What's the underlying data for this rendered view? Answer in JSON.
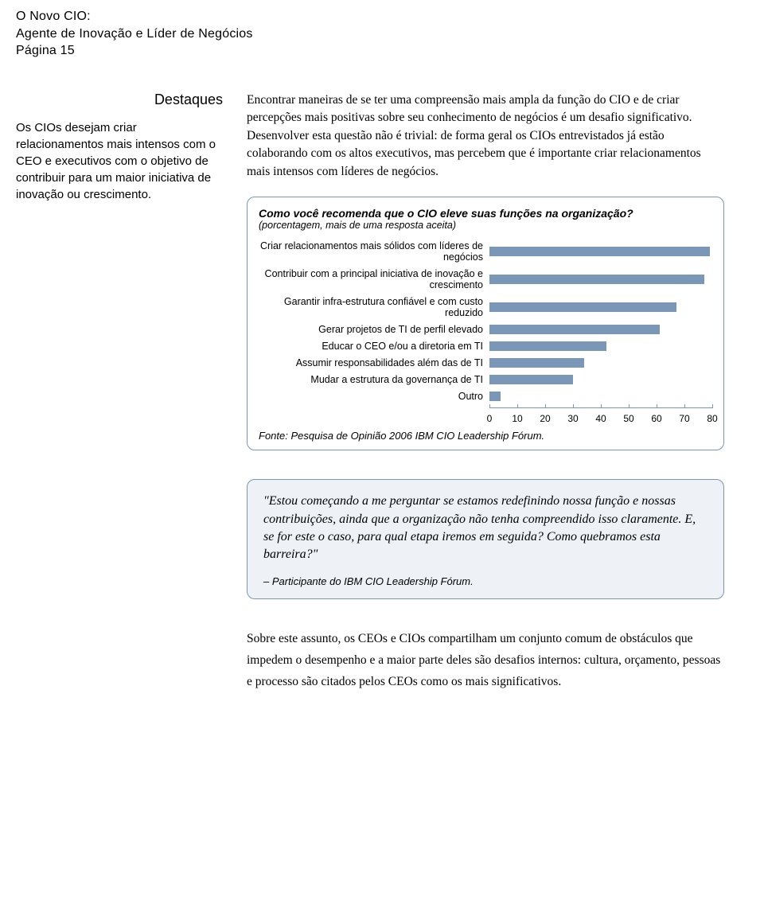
{
  "header": {
    "line1": "O Novo CIO:",
    "line2": "Agente de Inovação e Líder de Negócios",
    "page": "Página 15"
  },
  "sidebar": {
    "title": "Destaques",
    "body": "Os CIOs desejam criar relacionamentos mais intensos com o CEO e executivos com o objetivo de contribuir para um maior iniciativa de inovação ou crescimento."
  },
  "main": {
    "paragraph1": "Encontrar maneiras de se ter uma compreensão mais ampla da função do CIO e de criar percepções mais positivas sobre seu conhecimento de negócios é um desafio significativo. Desenvolver esta questão não é trivial: de forma geral os CIOs entrevistados já estão colaborando com os altos executivos, mas percebem que é importante criar relacionamentos mais intensos com líderes de negócios."
  },
  "chart": {
    "type": "bar",
    "title": "Como você recomenda que o CIO eleve suas funções na organização?",
    "subtitle": "(porcentagem, mais de uma resposta aceita)",
    "bar_color": "#7a97b8",
    "border_color": "#7a97b8",
    "xlim": [
      0,
      80
    ],
    "xtick_step": 10,
    "xticks": [
      0,
      10,
      20,
      30,
      40,
      50,
      60,
      70,
      80
    ],
    "categories": [
      "Criar relacionamentos mais sólidos com líderes de negócios",
      "Contribuir com a principal iniciativa de inovação e crescimento",
      "Garantir infra-estrutura confiável e com custo reduzido",
      "Gerar projetos de TI de perfil elevado",
      "Educar o CEO e/ou a diretoria em TI",
      "Assumir responsabilidades além das de TI",
      "Mudar a estrutura da governança de TI",
      "Outro"
    ],
    "values": [
      79,
      77,
      67,
      61,
      42,
      34,
      30,
      4
    ],
    "source": "Fonte: Pesquisa de Opinião 2006 IBM CIO Leadership Fórum.",
    "label_fontsize": 12.5,
    "tick_fontsize": 12,
    "background_color": "#ffffff"
  },
  "quote": {
    "text": "\"Estou começando a me perguntar se estamos redefinindo nossa função e nossas contribuições, ainda que a organização não tenha compreendido isso claramente. E, se for este o caso, para qual etapa iremos em seguida? Como quebramos esta barreira?\"",
    "attribution": "– Participante do IBM CIO Leadership Fórum.",
    "background_color": "#eef2f7",
    "border_color": "#7a97b8"
  },
  "closing": {
    "paragraph": "Sobre este assunto, os CEOs e CIOs compartilham um conjunto comum de obstáculos que impedem o desempenho e a maior parte deles são desafios internos: cultura, orçamento, pessoas e processo são citados pelos CEOs como os mais significativos."
  }
}
